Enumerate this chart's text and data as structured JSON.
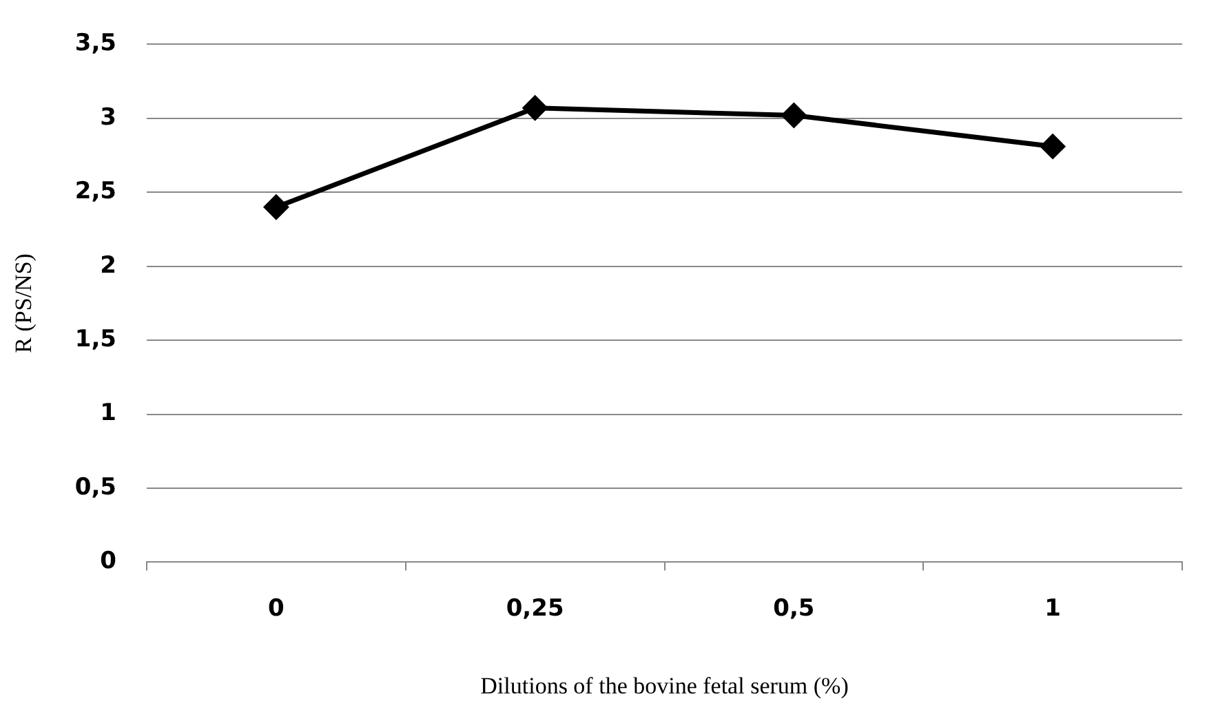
{
  "chart_data": {
    "type": "line",
    "xlabel": "Dilutions of the bovine fetal serum (%)",
    "ylabel": "R (PS/NS)",
    "categories": [
      "0",
      "0,25",
      "0,5",
      "1"
    ],
    "series": [
      {
        "color": "#000000",
        "values": [
          2.4,
          3.07,
          3.02,
          2.81
        ]
      }
    ],
    "ylim": [
      0,
      3.5
    ],
    "yticks": [
      {
        "value": 0,
        "label": "0"
      },
      {
        "value": 0.5,
        "label": "0,5"
      },
      {
        "value": 1,
        "label": "1"
      },
      {
        "value": 1.5,
        "label": "1,5"
      },
      {
        "value": 2,
        "label": "2"
      },
      {
        "value": 2.5,
        "label": "2,5"
      },
      {
        "value": 3,
        "label": "3"
      },
      {
        "value": 3.5,
        "label": "3,5"
      }
    ],
    "grid": "y",
    "legend": false,
    "marker": "diamond",
    "line_style": "solid"
  }
}
